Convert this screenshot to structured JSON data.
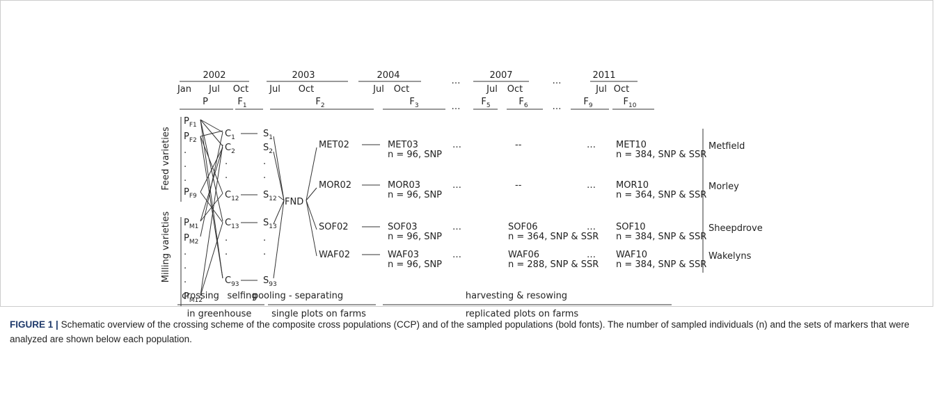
{
  "timeline": {
    "years": [
      "2002",
      "2003",
      "2004",
      "…",
      "2007",
      "…",
      "2011"
    ],
    "months": [
      "Jan",
      "Jul",
      "Oct",
      "Jul",
      "Oct",
      "Jul",
      "Oct",
      "Jul",
      "Oct",
      "Jul",
      "Oct"
    ],
    "generations": [
      {
        "main": "P"
      },
      {
        "main": "F",
        "sub": "1"
      },
      {
        "main": "F",
        "sub": "2"
      },
      {
        "main": "F",
        "sub": "3"
      },
      {
        "main": "…"
      },
      {
        "main": "F",
        "sub": "5"
      },
      {
        "main": "F",
        "sub": "6"
      },
      {
        "main": "…"
      },
      {
        "main": "F",
        "sub": "9"
      },
      {
        "main": "F",
        "sub": "10"
      }
    ]
  },
  "groups": [
    "Feed varieties",
    "Milling varieties"
  ],
  "parents": [
    {
      "main": "P",
      "sub": "F1"
    },
    {
      "main": "P",
      "sub": "F2"
    },
    {
      "main": "."
    },
    {
      "main": "."
    },
    {
      "main": "."
    },
    {
      "main": "P",
      "sub": "F9"
    },
    {
      "main": "P",
      "sub": "M1"
    },
    {
      "main": "P",
      "sub": "M2"
    },
    {
      "main": "."
    },
    {
      "main": "."
    },
    {
      "main": "."
    },
    {
      "main": "P",
      "sub": "M12"
    }
  ],
  "crosses": [
    {
      "main": "C",
      "sub": "1"
    },
    {
      "main": "C",
      "sub": "2"
    },
    {
      "main": "."
    },
    {
      "main": "."
    },
    {
      "main": "C",
      "sub": "12"
    },
    {
      "main": "C",
      "sub": "13"
    },
    {
      "main": "."
    },
    {
      "main": "."
    },
    {
      "main": "C",
      "sub": "93"
    }
  ],
  "selfings": [
    {
      "main": "S",
      "sub": "1"
    },
    {
      "main": "S",
      "sub": "2"
    },
    {
      "main": "."
    },
    {
      "main": "."
    },
    {
      "main": "S",
      "sub": "12"
    },
    {
      "main": "S",
      "sub": "13"
    },
    {
      "main": "."
    },
    {
      "main": "."
    },
    {
      "main": "S",
      "sub": "93"
    }
  ],
  "pool": "FND",
  "populations": [
    {
      "founder": "MET02",
      "f3": {
        "name": "MET03",
        "n": "n = 96, SNP"
      },
      "gap1": "…",
      "f6": {
        "name": "--"
      },
      "gap2": "…",
      "f10": {
        "name": "MET10",
        "n": "n = 384, SNP & SSR"
      },
      "site": "Metfield"
    },
    {
      "founder": "MOR02",
      "f3": {
        "name": "MOR03",
        "n": "n = 96, SNP"
      },
      "gap1": "…",
      "f6": {
        "name": "--"
      },
      "gap2": "…",
      "f10": {
        "name": "MOR10",
        "n": "n = 364, SNP & SSR"
      },
      "site": "Morley"
    },
    {
      "founder": "SOF02",
      "f3": {
        "name": "SOF03",
        "n": "n = 96, SNP"
      },
      "gap1": "…",
      "f6": {
        "name": "SOF06",
        "n": "n = 364, SNP & SSR"
      },
      "gap2": "…",
      "f10": {
        "name": "SOF10",
        "n": "n = 384, SNP & SSR"
      },
      "site": "Sheepdrove"
    },
    {
      "founder": "WAF02",
      "f3": {
        "name": "WAF03",
        "n": "n = 96, SNP"
      },
      "gap1": "…",
      "f6": {
        "name": "WAF06",
        "n": "n = 288, SNP & SSR"
      },
      "gap2": "…",
      "f10": {
        "name": "WAF10",
        "n": "n = 384, SNP & SSR"
      },
      "site": "Wakelyns"
    }
  ],
  "stages": [
    "crossing",
    "selfing",
    "pooling - separating",
    "harvesting & resowing"
  ],
  "locations": [
    "in greenhouse",
    "single plots on farms",
    "replicated plots on farms"
  ],
  "caption": {
    "label": "FIGURE 1 |",
    "text": "Schematic overview of the crossing scheme of the composite cross populations (CCP) and of the sampled populations (bold fonts). The number of sampled individuals (n) and the sets of markers that were analyzed are shown below each population."
  }
}
